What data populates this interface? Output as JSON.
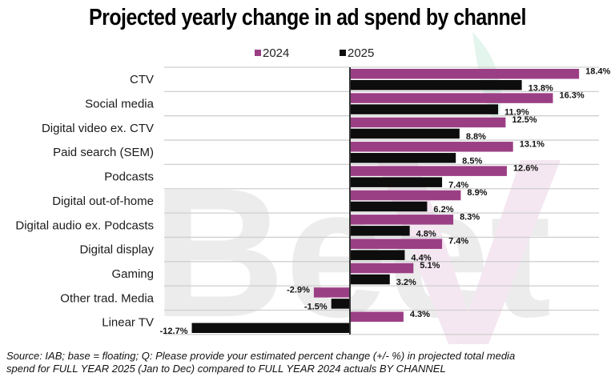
{
  "chart_data": {
    "type": "bar",
    "orientation": "horizontal",
    "title": "Projected yearly change in ad spend by channel",
    "xlabel": "",
    "ylabel": "",
    "unit": "%",
    "categories": [
      "CTV",
      "Social media",
      "Digital video ex. CTV",
      "Paid search (SEM)",
      "Podcasts",
      "Digital out-of-home",
      "Digital audio ex. Podcasts",
      "Digital display",
      "Gaming",
      "Other trad. Media",
      "Linear TV"
    ],
    "series": [
      {
        "name": "2024",
        "color": "#9b3f85",
        "values": [
          18.4,
          16.3,
          12.5,
          13.1,
          12.6,
          8.9,
          8.3,
          7.4,
          5.1,
          -2.9,
          4.3
        ],
        "labels": [
          "18.4%",
          "16.3%",
          "12.5%",
          "13.1%",
          "12.6%",
          "8.9%",
          "8.3%",
          "7.4%",
          "5.1%",
          "-2.9%",
          "4.3%"
        ]
      },
      {
        "name": "2025",
        "color": "#0d0d0d",
        "values": [
          13.8,
          11.9,
          8.8,
          8.5,
          7.4,
          6.2,
          4.8,
          4.4,
          3.2,
          -1.5,
          -12.7
        ],
        "labels": [
          "13.8%",
          "11.9%",
          "8.8%",
          "8.5%",
          "7.4%",
          "6.2%",
          "4.8%",
          "4.4%",
          "3.2%",
          "-1.5%",
          "-12.7%"
        ]
      }
    ],
    "xlim": [
      -15,
      20
    ],
    "grid": true,
    "legend_position": "top-center",
    "watermark": "BeetTV"
  },
  "footnote": {
    "line1": "Source: IAB; base = floating; Q: Please provide your estimated percent change (+/- %) in projected total media",
    "line2": "spend for FULL YEAR 2025 (Jan to Dec) compared to FULL YEAR 2024 actuals BY CHANNEL"
  }
}
